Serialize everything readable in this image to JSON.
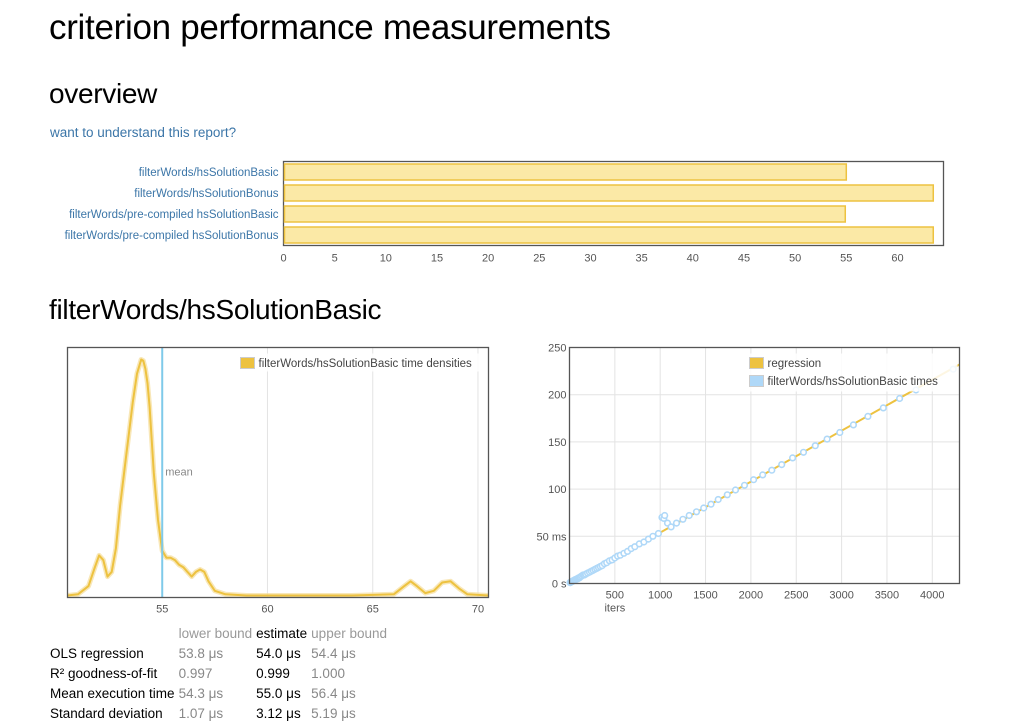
{
  "page": {
    "title": "criterion performance measurements",
    "overview_heading": "overview",
    "understand_link": "want to understand this report?"
  },
  "overview": {
    "bars": [
      {
        "label": "filterWords/hsSolutionBasic",
        "value": 55.0
      },
      {
        "label": "filterWords/hsSolutionBonus",
        "value": 63.5
      },
      {
        "label": "filterWords/pre-compiled hsSolutionBasic",
        "value": 54.9
      },
      {
        "label": "filterWords/pre-compiled hsSolutionBonus",
        "value": 63.5
      }
    ],
    "ticks": [
      "0",
      "5",
      "10",
      "15",
      "20",
      "25",
      "30",
      "35",
      "40",
      "45",
      "50",
      "55",
      "60"
    ]
  },
  "benchmark": {
    "heading": "filterWords/hsSolutionBasic",
    "stats": {
      "headers": [
        "lower bound",
        "estimate",
        "upper bound"
      ],
      "rows": [
        {
          "name": "OLS regression",
          "lower": "53.8 μs",
          "estimate": "54.0 μs",
          "upper": "54.4 μs"
        },
        {
          "name": "R² goodness-of-fit",
          "lower": "0.997",
          "estimate": "0.999",
          "upper": "1.000"
        },
        {
          "name": "Mean execution time",
          "lower": "54.3 μs",
          "estimate": "55.0 μs",
          "upper": "56.4 μs"
        },
        {
          "name": "Standard deviation",
          "lower": "1.07 μs",
          "estimate": "3.12 μs",
          "upper": "5.19 μs"
        }
      ]
    }
  },
  "colors": {
    "bar_fill": "#fbe9a6",
    "bar_stroke": "#edc240",
    "kde": "#edc240",
    "mean_line": "#7fcaea",
    "points": "#afd8f8",
    "link": "#3c76a8"
  },
  "chart_data": [
    {
      "type": "bar",
      "orientation": "horizontal",
      "categories": [
        "filterWords/hsSolutionBasic",
        "filterWords/hsSolutionBonus",
        "filterWords/pre-compiled hsSolutionBasic",
        "filterWords/pre-compiled hsSolutionBonus"
      ],
      "values": [
        55.0,
        63.5,
        54.9,
        63.5
      ],
      "xlim": [
        0,
        64.5
      ],
      "ticks": [
        0,
        5,
        10,
        15,
        20,
        25,
        30,
        35,
        40,
        45,
        50,
        55,
        60
      ],
      "grid": false
    },
    {
      "type": "line",
      "legend": "filterWords/hsSolutionBasic time densities",
      "legend_position": "top-right",
      "mean_label": "mean",
      "mean": 55.0,
      "xlim": [
        50.5,
        70.5
      ],
      "ylim": [
        0,
        1.0
      ],
      "ticks": [
        55,
        60,
        65,
        70
      ],
      "x": [
        50.5,
        51.0,
        51.5,
        51.8,
        52.0,
        52.2,
        52.4,
        52.6,
        52.8,
        53.0,
        53.3,
        53.6,
        53.8,
        54.0,
        54.1,
        54.2,
        54.3,
        54.4,
        54.5,
        54.6,
        54.8,
        55.0,
        55.2,
        55.4,
        55.6,
        55.8,
        56.0,
        56.2,
        56.4,
        56.6,
        56.8,
        57.0,
        57.2,
        57.5,
        58.0,
        59.0,
        60.0,
        62.0,
        64.0,
        66.0,
        66.5,
        66.8,
        67.1,
        67.5,
        67.9,
        68.3,
        68.7,
        69.1,
        69.5,
        70.5
      ],
      "y": [
        0.0,
        0.005,
        0.04,
        0.12,
        0.17,
        0.15,
        0.08,
        0.1,
        0.2,
        0.38,
        0.6,
        0.82,
        0.94,
        1.0,
        0.995,
        0.96,
        0.9,
        0.8,
        0.66,
        0.52,
        0.32,
        0.19,
        0.16,
        0.16,
        0.15,
        0.13,
        0.12,
        0.1,
        0.08,
        0.1,
        0.11,
        0.1,
        0.06,
        0.02,
        0.005,
        0.0,
        0.0,
        0.0,
        0.0,
        0.005,
        0.04,
        0.06,
        0.04,
        0.01,
        0.02,
        0.055,
        0.06,
        0.03,
        0.005,
        0.0
      ],
      "grid": true
    },
    {
      "type": "scatter",
      "series": [
        {
          "name": "regression",
          "kind": "line",
          "x": [
            0,
            4300
          ],
          "y": [
            0,
            232
          ]
        },
        {
          "name": "filterWords/hsSolutionBasic times",
          "kind": "scatter",
          "x": [
            5,
            10,
            20,
            30,
            40,
            50,
            60,
            70,
            80,
            90,
            100,
            110,
            120,
            135,
            150,
            165,
            180,
            200,
            220,
            240,
            260,
            280,
            300,
            320,
            340,
            360,
            385,
            410,
            440,
            470,
            500,
            530,
            560,
            600,
            640,
            680,
            720,
            770,
            820,
            870,
            920,
            980,
            1020,
            1040,
            1050,
            1080,
            1120,
            1180,
            1250,
            1320,
            1400,
            1480,
            1560,
            1640,
            1740,
            1830,
            1930,
            2030,
            2130,
            2230,
            2340,
            2460,
            2580,
            2710,
            2840,
            2980,
            3130,
            3290,
            3460,
            3640,
            3820,
            4230
          ],
          "y": [
            1,
            1,
            2,
            2,
            3,
            3,
            4,
            4,
            5,
            5,
            6,
            6,
            7,
            8,
            9,
            9,
            10,
            11,
            12,
            13,
            14,
            15,
            16,
            17,
            18,
            19,
            21,
            22,
            24,
            25,
            27,
            29,
            30,
            32,
            34,
            37,
            39,
            42,
            44,
            47,
            50,
            53,
            70,
            69,
            72,
            64,
            60,
            64,
            68,
            72,
            76,
            80,
            84,
            89,
            94,
            99,
            104,
            110,
            115,
            120,
            126,
            133,
            139,
            146,
            153,
            160,
            168,
            177,
            186,
            196,
            205,
            227
          ]
        }
      ],
      "xlim": [
        0,
        4300
      ],
      "ylim": [
        0,
        250
      ],
      "xticks": [
        "500",
        "1000",
        "1500",
        "2000",
        "2500",
        "3000",
        "3500",
        "4000"
      ],
      "yticks": [
        "0 s",
        "50 ms",
        "100",
        "150",
        "200",
        "250"
      ],
      "xlabel": "iters",
      "legend_position": "top-right",
      "grid": true
    }
  ]
}
